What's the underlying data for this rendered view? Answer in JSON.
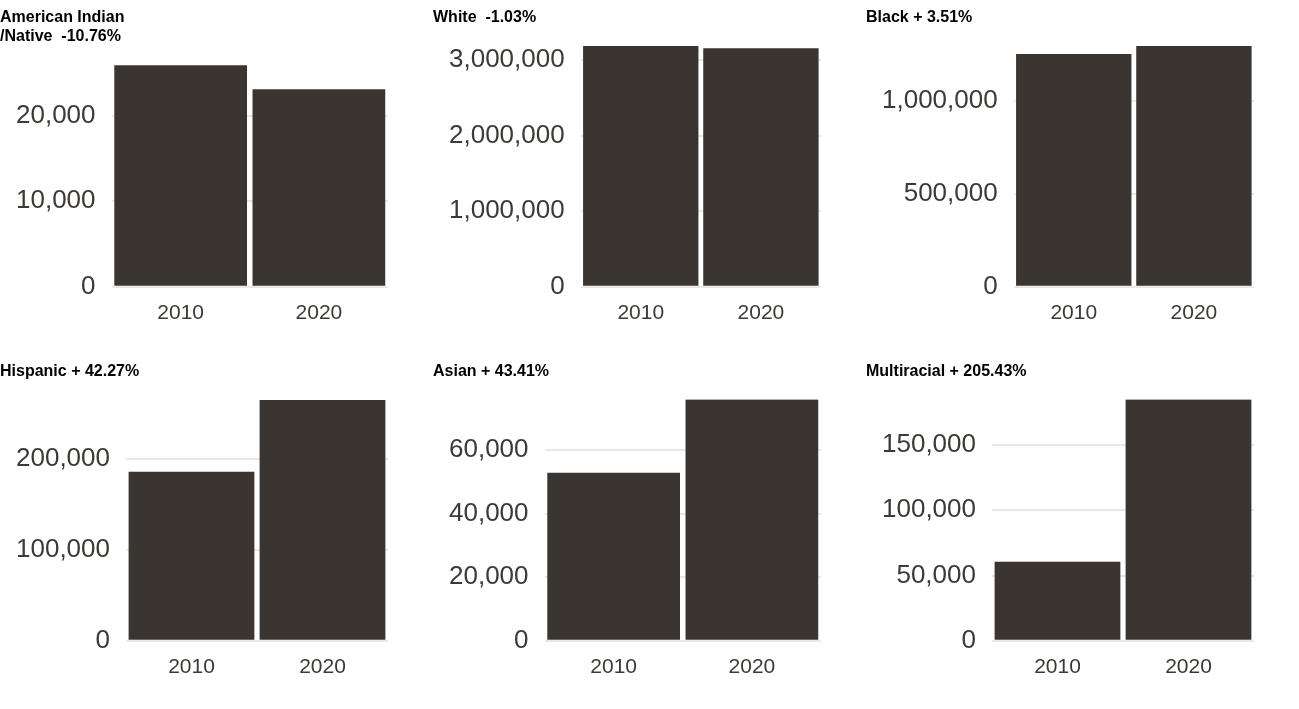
{
  "chart_data": [
    {
      "type": "bar",
      "title": "American Indian\n/Native  -10.76%",
      "categories": [
        "2010",
        "2020"
      ],
      "values": [
        25900,
        23100
      ],
      "color": "#3a3530",
      "ylim": [
        0,
        26000
      ],
      "yticks": [
        {
          "value": 0,
          "label": "0"
        },
        {
          "value": 10000,
          "label": "10,000"
        },
        {
          "value": 20000,
          "label": "20,000"
        }
      ],
      "grid": "y"
    },
    {
      "type": "bar",
      "title": "White  -1.03%",
      "categories": [
        "2010",
        "2020"
      ],
      "values": [
        3190000,
        3160000
      ],
      "color": "#3a3530",
      "ylim": [
        0,
        3200000
      ],
      "yticks": [
        {
          "value": 0,
          "label": "0"
        },
        {
          "value": 1000000,
          "label": "1,000,000"
        },
        {
          "value": 2000000,
          "label": "2,000,000"
        },
        {
          "value": 3000000,
          "label": "3,000,000"
        }
      ],
      "grid": "y"
    },
    {
      "type": "bar",
      "title": "Black + 3.51%",
      "categories": [
        "2010",
        "2020"
      ],
      "values": [
        1252000,
        1296000
      ],
      "color": "#3a3530",
      "ylim": [
        0,
        1300000
      ],
      "yticks": [
        {
          "value": 0,
          "label": "0"
        },
        {
          "value": 500000,
          "label": "500,000"
        },
        {
          "value": 1000000,
          "label": "1,000,000"
        }
      ],
      "grid": "y"
    },
    {
      "type": "bar",
      "title": "Hispanic + 42.27%",
      "categories": [
        "2010",
        "2020"
      ],
      "values": [
        186000,
        265000
      ],
      "color": "#3a3530",
      "ylim": [
        0,
        266000
      ],
      "yticks": [
        {
          "value": 0,
          "label": "0"
        },
        {
          "value": 100000,
          "label": "100,000"
        },
        {
          "value": 200000,
          "label": "200,000"
        }
      ],
      "grid": "y"
    },
    {
      "type": "bar",
      "title": "Asian + 43.41%",
      "categories": [
        "2010",
        "2020"
      ],
      "values": [
        52900,
        75900
      ],
      "color": "#3a3530",
      "ylim": [
        0,
        76000
      ],
      "yticks": [
        {
          "value": 0,
          "label": "0"
        },
        {
          "value": 20000,
          "label": "20,000"
        },
        {
          "value": 40000,
          "label": "40,000"
        },
        {
          "value": 60000,
          "label": "60,000"
        }
      ],
      "grid": "y"
    },
    {
      "type": "bar",
      "title": "Multiracial + 205.43%",
      "categories": [
        "2010",
        "2020"
      ],
      "values": [
        60500,
        184800
      ],
      "color": "#3a3530",
      "ylim": [
        0,
        185000
      ],
      "yticks": [
        {
          "value": 0,
          "label": "0"
        },
        {
          "value": 50000,
          "label": "50,000"
        },
        {
          "value": 100000,
          "label": "100,000"
        },
        {
          "value": 150000,
          "label": "150,000"
        }
      ],
      "grid": "y"
    }
  ]
}
